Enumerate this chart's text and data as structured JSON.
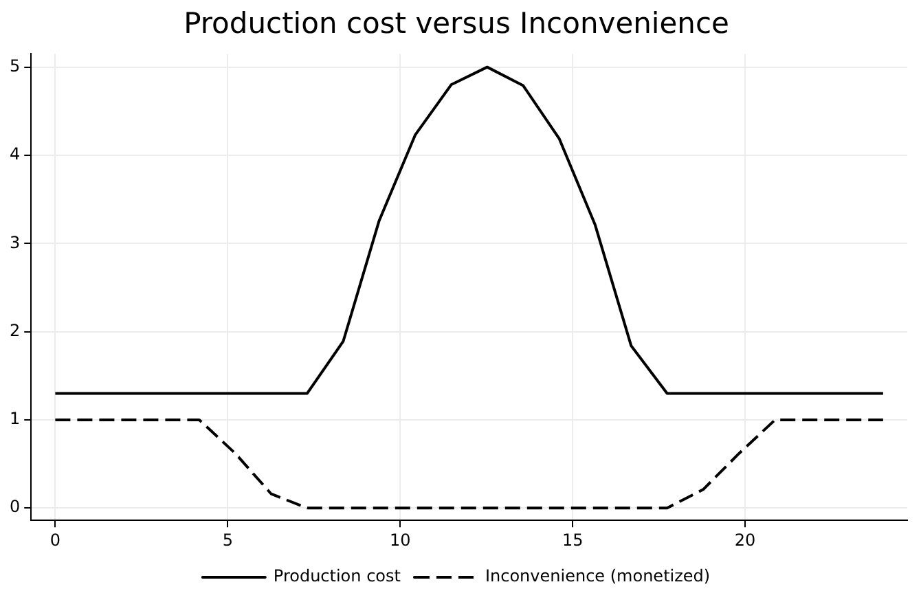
{
  "chart_data": {
    "type": "line",
    "title": "Production cost versus Inconvenience",
    "x": [
      0,
      1.0435,
      2.087,
      3.1304,
      4.1739,
      5.2174,
      6.2609,
      7.3043,
      8.3478,
      9.3913,
      10.4348,
      11.4783,
      12.5217,
      13.5652,
      14.6087,
      15.6522,
      16.6957,
      17.7391,
      18.7826,
      19.8261,
      20.8696,
      21.913,
      22.9565,
      24
    ],
    "series": [
      {
        "name": "Production cost",
        "color": "#000000",
        "line_style": "solid",
        "values": [
          1.3,
          1.3,
          1.3,
          1.3,
          1.3,
          1.3,
          1.3,
          1.3,
          1.89,
          3.26,
          4.23,
          4.8,
          5.0,
          4.79,
          4.19,
          3.21,
          1.84,
          1.3,
          1.3,
          1.3,
          1.3,
          1.3,
          1.3,
          1.3
        ]
      },
      {
        "name": "Inconvenience (monetized)",
        "color": "#000000",
        "line_style": "dashed",
        "values": [
          1,
          1,
          1,
          1,
          1,
          0.62,
          0.16,
          0,
          0,
          0,
          0,
          0,
          0,
          0,
          0,
          0,
          0,
          0,
          0.21,
          0.62,
          1,
          1,
          1,
          1
        ]
      }
    ],
    "xlim": [
      -0.7,
      24.7
    ],
    "xticks": [
      0,
      5,
      10,
      15,
      20
    ],
    "ylim": [
      -0.14,
      5.15
    ],
    "yticks": [
      0,
      1,
      2,
      3,
      4,
      5
    ],
    "grid": true,
    "legend": "bottom",
    "marker": "none"
  }
}
